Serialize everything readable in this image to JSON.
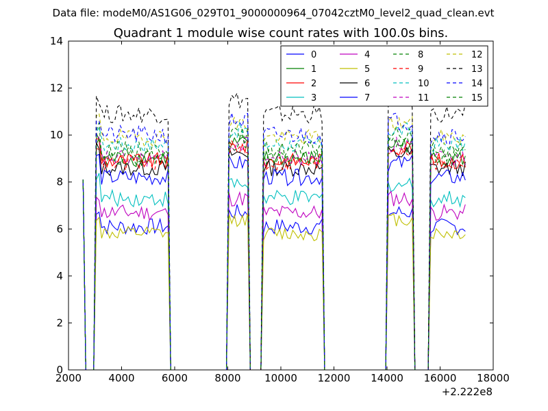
{
  "suptitle": "Data file: modeM0/AS1G06_029T01_9000000964_07042cztM0_level2_quad_clean.evt",
  "chart_data": {
    "type": "line",
    "title": "Quadrant 1 module wise count rates with 100.0s bins.",
    "xlabel": "",
    "ylabel": "",
    "x_offset_label": "+2.222e8",
    "xlim": [
      2000,
      18000
    ],
    "ylim": [
      0,
      14
    ],
    "x_ticks": [
      "2000",
      "4000",
      "6000",
      "8000",
      "10000",
      "12000",
      "14000",
      "16000",
      "18000"
    ],
    "y_ticks": [
      "0",
      "2",
      "4",
      "6",
      "8",
      "10",
      "12",
      "14"
    ],
    "grid": false,
    "legend_location": "upper right",
    "legend_columns": 4,
    "segments": [
      {
        "start": 2550,
        "end": 2600
      },
      {
        "start": 3000,
        "end": 5800
      },
      {
        "start": 8050,
        "end": 8750
      },
      {
        "start": 9350,
        "end": 11550
      },
      {
        "start": 14050,
        "end": 14950
      },
      {
        "start": 15650,
        "end": 16950
      }
    ],
    "series": [
      {
        "name": "0",
        "color": "#0000ff",
        "dashed": false,
        "level": 6.1,
        "noise": 0.35
      },
      {
        "name": "1",
        "color": "#008000",
        "dashed": false,
        "level": 9.0,
        "noise": 0.35
      },
      {
        "name": "2",
        "color": "#ff0000",
        "dashed": false,
        "level": 8.9,
        "noise": 0.35
      },
      {
        "name": "3",
        "color": "#00bfbf",
        "dashed": false,
        "level": 7.3,
        "noise": 0.35
      },
      {
        "name": "4",
        "color": "#bf00bf",
        "dashed": false,
        "level": 6.7,
        "noise": 0.35
      },
      {
        "name": "5",
        "color": "#bfbf00",
        "dashed": false,
        "level": 5.8,
        "noise": 0.3
      },
      {
        "name": "6",
        "color": "#000000",
        "dashed": false,
        "level": 8.6,
        "noise": 0.35
      },
      {
        "name": "7",
        "color": "#0000ff",
        "dashed": false,
        "level": 8.2,
        "noise": 0.35
      },
      {
        "name": "8",
        "color": "#008000",
        "dashed": true,
        "level": 9.4,
        "noise": 0.35
      },
      {
        "name": "9",
        "color": "#ff0000",
        "dashed": true,
        "level": 8.8,
        "noise": 0.35
      },
      {
        "name": "10",
        "color": "#00bfbf",
        "dashed": true,
        "level": 9.6,
        "noise": 0.35
      },
      {
        "name": "11",
        "color": "#bf00bf",
        "dashed": true,
        "level": 9.0,
        "noise": 0.35
      },
      {
        "name": "12",
        "color": "#bfbf00",
        "dashed": true,
        "level": 9.9,
        "noise": 0.35
      },
      {
        "name": "13",
        "color": "#000000",
        "dashed": true,
        "level": 10.9,
        "noise": 0.4
      },
      {
        "name": "14",
        "color": "#0000ff",
        "dashed": true,
        "level": 10.0,
        "noise": 0.4
      },
      {
        "name": "15",
        "color": "#008000",
        "dashed": true,
        "level": 9.1,
        "noise": 0.35
      }
    ]
  }
}
